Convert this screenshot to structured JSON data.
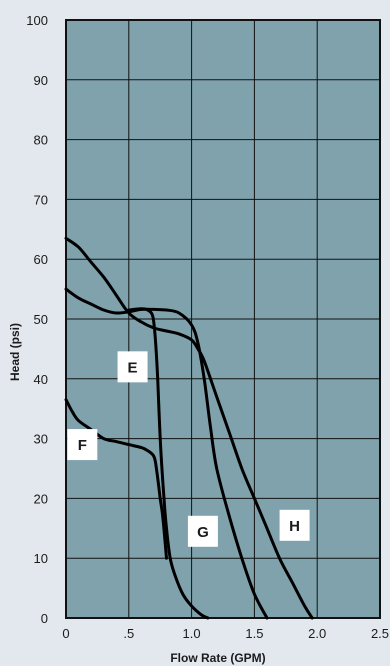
{
  "chart_data": {
    "type": "line",
    "title": "",
    "xlabel": "Flow Rate (GPM)",
    "ylabel": "Head (psi)",
    "xlim": [
      0,
      2.5
    ],
    "ylim": [
      0,
      100
    ],
    "x_ticks": [
      0,
      0.5,
      1.0,
      1.5,
      2.0,
      2.5
    ],
    "x_tick_labels": [
      "0",
      ".5",
      "1.0",
      "1.5",
      "2.0",
      "2.5"
    ],
    "y_ticks": [
      0,
      10,
      20,
      30,
      40,
      50,
      60,
      70,
      80,
      90,
      100
    ],
    "y_tick_labels": [
      "0",
      "10",
      "20",
      "30",
      "40",
      "50",
      "60",
      "70",
      "80",
      "90",
      "100"
    ],
    "grid": true,
    "legend": "none",
    "series": [
      {
        "name": "E",
        "x": [
          0.5,
          0.6,
          0.65,
          0.69,
          0.71,
          0.73,
          0.75,
          0.78,
          0.8,
          0.83,
          0.87,
          0.93,
          1.0,
          1.08,
          1.13
        ],
        "y": [
          51.5,
          51.7,
          51.5,
          50.5,
          47,
          40,
          30,
          20,
          15,
          10,
          7,
          4,
          2,
          0.5,
          0
        ]
      },
      {
        "name": "F",
        "x": [
          0,
          0.05,
          0.1,
          0.2,
          0.3,
          0.4,
          0.5,
          0.6,
          0.65,
          0.7,
          0.72,
          0.75,
          0.77,
          0.8
        ],
        "y": [
          36.5,
          34.5,
          33,
          31.5,
          30,
          29.5,
          29,
          28.5,
          28,
          27,
          25,
          20,
          17,
          10
        ]
      },
      {
        "name": "G",
        "x": [
          0,
          0.1,
          0.2,
          0.3,
          0.4,
          0.5,
          0.6,
          0.7,
          0.8,
          0.9,
          1.0,
          1.05,
          1.1,
          1.15,
          1.2,
          1.3,
          1.4,
          1.5,
          1.6
        ],
        "y": [
          55,
          53.5,
          52.5,
          51.5,
          51,
          51.2,
          51.6,
          51.6,
          51.5,
          51,
          49,
          46,
          40,
          32,
          25,
          17,
          10,
          4,
          0
        ]
      },
      {
        "name": "H",
        "x": [
          0,
          0.1,
          0.2,
          0.3,
          0.4,
          0.5,
          0.6,
          0.7,
          0.8,
          0.9,
          1.0,
          1.05,
          1.1,
          1.2,
          1.3,
          1.4,
          1.5,
          1.6,
          1.7,
          1.8,
          1.9,
          1.96
        ],
        "y": [
          63.5,
          62,
          59.5,
          57,
          54,
          51,
          49.5,
          48.5,
          48,
          47.5,
          46.5,
          45,
          43,
          37,
          31,
          25,
          20,
          15,
          10,
          6,
          2,
          0
        ]
      }
    ],
    "curve_labels": [
      {
        "text": "E",
        "x": 0.53,
        "y": 42
      },
      {
        "text": "F",
        "x": 0.13,
        "y": 29
      },
      {
        "text": "G",
        "x": 1.09,
        "y": 14.5
      },
      {
        "text": "H",
        "x": 1.82,
        "y": 15.5
      }
    ],
    "colors": {
      "plot_background": "#7fa2ad",
      "page_background": "#e2e8ee",
      "grid": "#111111",
      "curves": "#000000",
      "label_box": "#ffffff"
    }
  }
}
